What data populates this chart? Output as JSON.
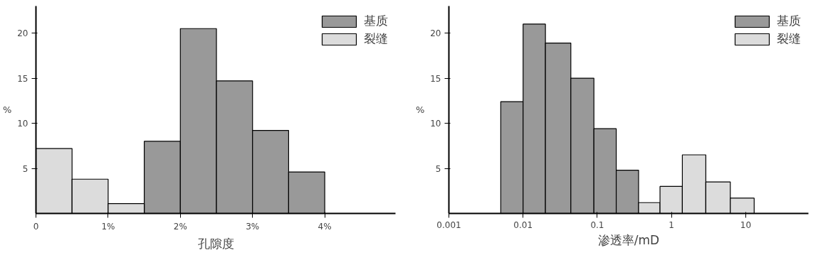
{
  "chart_data": [
    {
      "type": "histogram",
      "xlabel": "孔隙度",
      "ylabel": "%",
      "bins": [
        0,
        0.5,
        1,
        1.5,
        2,
        2.5,
        3,
        3.5,
        4
      ],
      "series": [
        {
          "name": "基质",
          "color": "#999999",
          "values": [
            null,
            null,
            null,
            8.0,
            20.5,
            14.7,
            9.2,
            4.6
          ]
        },
        {
          "name": "裂缝",
          "color": "#dcdcdc",
          "values": [
            7.2,
            3.8,
            1.1,
            null,
            null,
            null,
            null,
            null
          ]
        }
      ],
      "xlim": [
        0,
        4.98
      ],
      "ylim": [
        0,
        23
      ],
      "xticks": [
        0,
        {
          "value": 1,
          "label": "1%"
        },
        {
          "value": 2,
          "label": "2%"
        },
        {
          "value": 3,
          "label": "3%"
        },
        {
          "value": 4,
          "label": "4%"
        }
      ],
      "yticks": [
        5,
        10,
        15,
        20
      ],
      "grid": false,
      "legend": "top right"
    },
    {
      "type": "histogram",
      "xlabel": "渗透率/mD",
      "ylabel": "%",
      "log": "x",
      "bins": [
        0.005,
        0.01,
        0.02,
        0.044,
        0.09,
        0.18,
        0.36,
        0.7,
        1.4,
        2.9,
        6.2,
        13
      ],
      "series": [
        {
          "name": "基质",
          "color": "#999999",
          "values": [
            12.4,
            21.0,
            18.9,
            15.0,
            9.4,
            4.8,
            null,
            null,
            null,
            null,
            null
          ]
        },
        {
          "name": "裂缝",
          "color": "#dcdcdc",
          "values": [
            null,
            null,
            null,
            null,
            null,
            null,
            1.2,
            3.0,
            6.5,
            3.5,
            1.7
          ]
        }
      ],
      "xlim": [
        0.001,
        70
      ],
      "ylim": [
        0,
        23
      ],
      "xticks": [
        0.001,
        0.01,
        0.1,
        1,
        10
      ],
      "yticks": [
        5,
        10,
        15,
        20
      ],
      "grid": false,
      "legend": "top right"
    }
  ]
}
